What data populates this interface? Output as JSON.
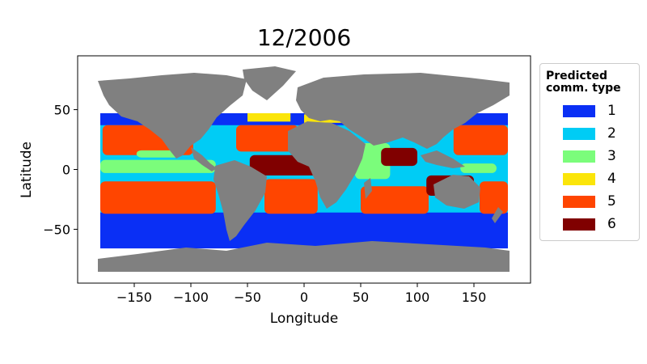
{
  "chart_data": {
    "type": "map",
    "title": "12/2006",
    "xlabel": "Longitude",
    "ylabel": "Latitude",
    "xlim": [
      -200,
      200
    ],
    "ylim": [
      -95,
      95
    ],
    "xticks": [
      -150,
      -100,
      -50,
      0,
      50,
      100,
      150
    ],
    "yticks": [
      -50,
      0,
      50
    ],
    "xtick_labels": [
      "−150",
      "−100",
      "−50",
      "0",
      "50",
      "100",
      "150"
    ],
    "ytick_labels": [
      "−50",
      "0",
      "50"
    ],
    "land_color": "#808080",
    "legend": {
      "title": "Predicted\ncomm. type",
      "placement": "outside-right",
      "entries": [
        {
          "label": "1",
          "color": "#0a2ff5"
        },
        {
          "label": "2",
          "color": "#00ccf5"
        },
        {
          "label": "3",
          "color": "#7bfd7b"
        },
        {
          "label": "4",
          "color": "#fbe50a"
        },
        {
          "label": "5",
          "color": "#ff4500"
        },
        {
          "label": "6",
          "color": "#800000"
        }
      ]
    },
    "regions": [
      {
        "type": 1,
        "lon": [
          -180,
          180
        ],
        "lat": [
          -66,
          -35
        ]
      },
      {
        "type": 1,
        "lon": [
          -180,
          180
        ],
        "lat": [
          36,
          47
        ]
      },
      {
        "type": 2,
        "lon": [
          -180,
          180
        ],
        "lat": [
          -36,
          37
        ]
      },
      {
        "type": 5,
        "lon": [
          -178,
          -98
        ],
        "lat": [
          12,
          37
        ]
      },
      {
        "type": 5,
        "lon": [
          -60,
          -5
        ],
        "lat": [
          15,
          37
        ]
      },
      {
        "type": 5,
        "lon": [
          132,
          180
        ],
        "lat": [
          12,
          37
        ]
      },
      {
        "type": 5,
        "lon": [
          -180,
          -78
        ],
        "lat": [
          -37,
          -10
        ]
      },
      {
        "type": 5,
        "lon": [
          -35,
          12
        ],
        "lat": [
          -37,
          -8
        ]
      },
      {
        "type": 5,
        "lon": [
          50,
          110
        ],
        "lat": [
          -37,
          -14
        ]
      },
      {
        "type": 5,
        "lon": [
          155,
          180
        ],
        "lat": [
          -37,
          -10
        ]
      },
      {
        "type": 3,
        "lon": [
          -180,
          -78
        ],
        "lat": [
          -3,
          8
        ]
      },
      {
        "type": 3,
        "lon": [
          -148,
          -108
        ],
        "lat": [
          10,
          16
        ]
      },
      {
        "type": 3,
        "lon": [
          45,
          76
        ],
        "lat": [
          -8,
          22
        ]
      },
      {
        "type": 3,
        "lon": [
          138,
          170
        ],
        "lat": [
          -3,
          5
        ]
      },
      {
        "type": 6,
        "lon": [
          -48,
          12
        ],
        "lat": [
          -5,
          12
        ]
      },
      {
        "type": 6,
        "lon": [
          68,
          100
        ],
        "lat": [
          3,
          18
        ]
      },
      {
        "type": 6,
        "lon": [
          108,
          150
        ],
        "lat": [
          -22,
          -5
        ]
      },
      {
        "type": 4,
        "lon": [
          -50,
          -12
        ],
        "lat": [
          40,
          47
        ]
      },
      {
        "type": 4,
        "lon": [
          0,
          40
        ],
        "lat": [
          39,
          46
        ]
      }
    ]
  }
}
